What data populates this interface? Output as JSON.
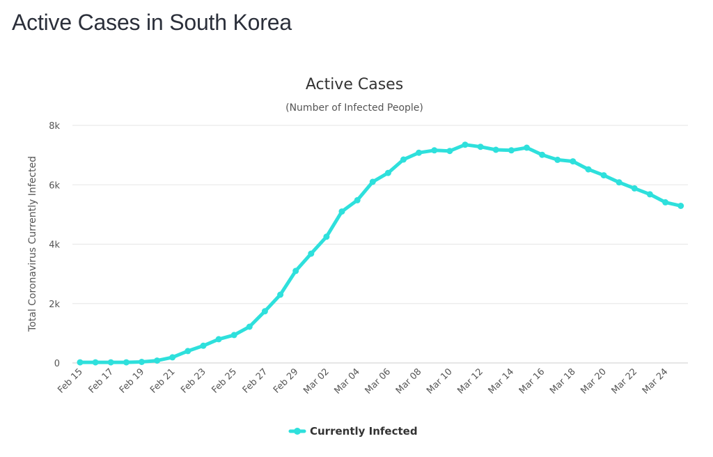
{
  "page": {
    "heading": "Active Cases in South Korea"
  },
  "colors": {
    "series": "#2ee0dc",
    "grid": "#e6e6e6",
    "text": "#333333"
  },
  "chart_data": {
    "type": "line",
    "title": "Active Cases",
    "subtitle": "(Number of Infected People)",
    "ylabel": "Total Coronavirus Currently Infected",
    "xlabel": "",
    "ylim": [
      0,
      8000
    ],
    "y_ticks": [
      0,
      2000,
      4000,
      6000,
      8000
    ],
    "y_tick_labels": [
      "0",
      "2k",
      "4k",
      "6k",
      "8k"
    ],
    "x_tick_labels": [
      "Feb 15",
      "Feb 17",
      "Feb 19",
      "Feb 21",
      "Feb 23",
      "Feb 25",
      "Feb 27",
      "Feb 29",
      "Mar 02",
      "Mar 04",
      "Mar 06",
      "Mar 08",
      "Mar 10",
      "Mar 12",
      "Mar 14",
      "Mar 16",
      "Mar 18",
      "Mar 20",
      "Mar 22",
      "Mar 24"
    ],
    "grid": true,
    "legend_position": "bottom-center",
    "x": [
      "Feb 15",
      "Feb 16",
      "Feb 17",
      "Feb 18",
      "Feb 19",
      "Feb 20",
      "Feb 21",
      "Feb 22",
      "Feb 23",
      "Feb 24",
      "Feb 25",
      "Feb 26",
      "Feb 27",
      "Feb 28",
      "Feb 29",
      "Mar 01",
      "Mar 02",
      "Mar 03",
      "Mar 04",
      "Mar 05",
      "Mar 06",
      "Mar 07",
      "Mar 08",
      "Mar 09",
      "Mar 10",
      "Mar 11",
      "Mar 12",
      "Mar 13",
      "Mar 14",
      "Mar 15",
      "Mar 16",
      "Mar 17",
      "Mar 18",
      "Mar 19",
      "Mar 20",
      "Mar 21",
      "Mar 22",
      "Mar 23",
      "Mar 24",
      "Mar 25"
    ],
    "series": [
      {
        "name": "Currently Infected",
        "values": [
          20,
          22,
          20,
          21,
          35,
          80,
          190,
          400,
          580,
          800,
          940,
          1220,
          1740,
          2300,
          3100,
          3680,
          4250,
          5100,
          5480,
          6100,
          6400,
          6850,
          7080,
          7160,
          7140,
          7350,
          7280,
          7180,
          7160,
          7250,
          7010,
          6840,
          6790,
          6520,
          6320,
          6080,
          5880,
          5680,
          5410,
          5290
        ]
      }
    ]
  }
}
